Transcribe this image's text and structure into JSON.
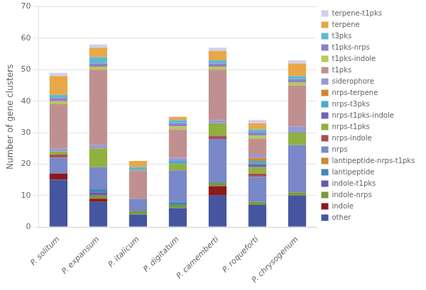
{
  "chart_data": {
    "type": "bar",
    "stacked": true,
    "ylabel": "Number of gene clusters",
    "categories": [
      "P. solitum",
      "P. expansum",
      "P. italicum",
      "P. digitatum",
      "P. camemberti",
      "P. roqueforti",
      "P. chrysogenum"
    ],
    "series": [
      {
        "name": "other",
        "color": "#4555A0",
        "values": [
          15,
          8,
          4,
          6,
          10,
          7,
          10
        ]
      },
      {
        "name": "indole",
        "color": "#8B1A1A",
        "values": [
          2,
          1,
          0,
          0,
          3,
          0,
          0
        ]
      },
      {
        "name": "indole-nrps",
        "color": "#7A9A3A",
        "values": [
          0,
          1,
          1,
          1,
          1,
          1,
          1
        ]
      },
      {
        "name": "indole-t1pks",
        "color": "#6A5AAA",
        "values": [
          0,
          1,
          0,
          0,
          0,
          0,
          0
        ]
      },
      {
        "name": "lantipeptide",
        "color": "#4488B8",
        "values": [
          0,
          1,
          0,
          1,
          0,
          0,
          0
        ]
      },
      {
        "name": "lantipeptide-nrps-t1pks",
        "color": "#CC8833",
        "values": [
          0,
          0,
          0,
          0,
          0,
          0,
          0
        ]
      },
      {
        "name": "nrps",
        "color": "#7888C8",
        "values": [
          5,
          7,
          4,
          10,
          14,
          8,
          15
        ]
      },
      {
        "name": "nrps-indole",
        "color": "#A85050",
        "values": [
          1,
          0,
          0,
          0,
          1,
          1,
          0
        ]
      },
      {
        "name": "nrps-t1pks",
        "color": "#90B040",
        "values": [
          1,
          6,
          0,
          2,
          4,
          2,
          4
        ]
      },
      {
        "name": "nrps-t1pks-indole",
        "color": "#7060B8",
        "values": [
          0,
          0,
          0,
          0,
          0,
          1,
          0
        ]
      },
      {
        "name": "nrps-t3pks",
        "color": "#50A8C8",
        "values": [
          0,
          0,
          0,
          1,
          0,
          1,
          0
        ]
      },
      {
        "name": "nrps-terpene",
        "color": "#D08830",
        "values": [
          0,
          0,
          0,
          0,
          0,
          1,
          0
        ]
      },
      {
        "name": "siderophore",
        "color": "#9898D8",
        "values": [
          1,
          1,
          0,
          1,
          1,
          1,
          2
        ]
      },
      {
        "name": "t1pks",
        "color": "#C09090",
        "values": [
          14,
          24,
          9,
          9,
          16,
          5,
          13
        ]
      },
      {
        "name": "t1pks-indole",
        "color": "#B8C858",
        "values": [
          1,
          1,
          0,
          1,
          1,
          1,
          1
        ]
      },
      {
        "name": "t1pks-nrps",
        "color": "#9080C8",
        "values": [
          1,
          1,
          0,
          1,
          1,
          1,
          1
        ]
      },
      {
        "name": "t3pks",
        "color": "#60B8D0",
        "values": [
          1,
          2,
          1,
          1,
          1,
          1,
          1
        ]
      },
      {
        "name": "terpene",
        "color": "#E8A848",
        "values": [
          6,
          3,
          2,
          1,
          3,
          2,
          4
        ]
      },
      {
        "name": "terpene-t1pks",
        "color": "#D0D0F0",
        "values": [
          1,
          1,
          0,
          0,
          1,
          1,
          1
        ]
      }
    ],
    "ylim": [
      0,
      70
    ],
    "yticks": [
      0,
      10,
      20,
      30,
      40,
      50,
      60,
      70
    ],
    "grid": true,
    "legend": "right"
  }
}
